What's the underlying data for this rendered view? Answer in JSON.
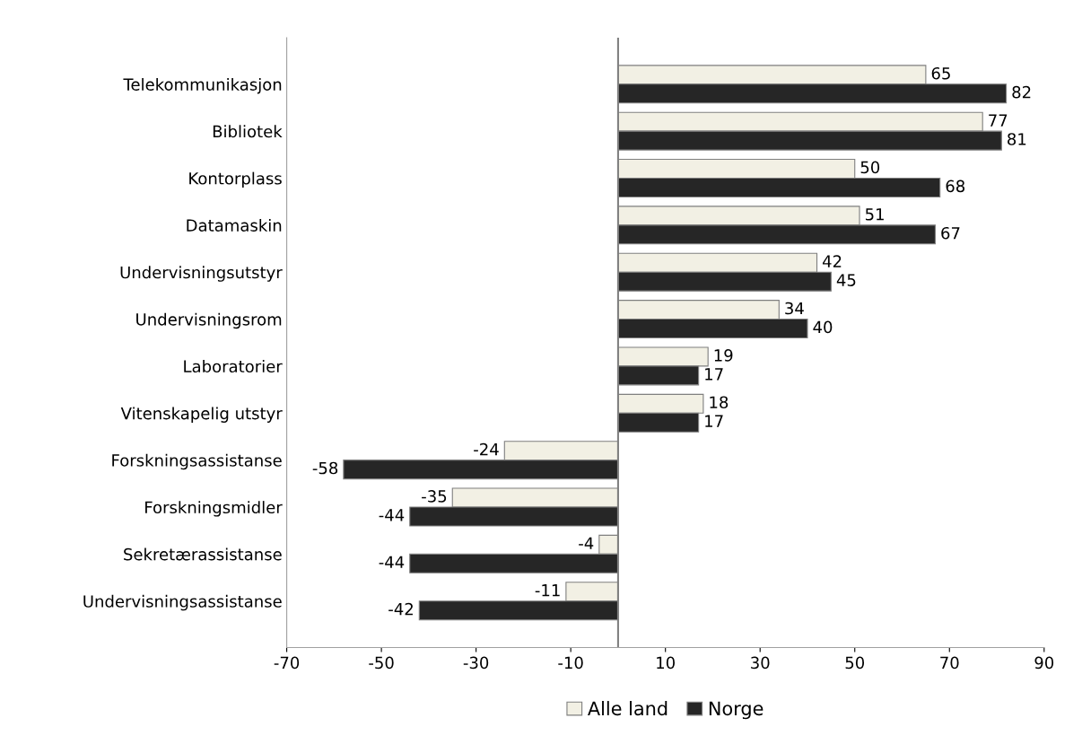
{
  "chart_data": {
    "type": "bar",
    "orientation": "horizontal",
    "categories": [
      "Telekommunikasjon",
      "Bibliotek",
      "Kontorplass",
      "Datamaskin",
      "Undervisningsutstyr",
      "Undervisningsrom",
      "Laboratorier",
      "Vitenskapelig utstyr",
      "Forskningsassistanse",
      "Forskningsmidler",
      "Sekretærassistanse",
      "Undervisningsassistanse"
    ],
    "series": [
      {
        "name": "Alle land",
        "color": "#f2f0e4",
        "values": [
          65,
          77,
          50,
          51,
          42,
          34,
          19,
          18,
          -24,
          -35,
          -4,
          -11
        ]
      },
      {
        "name": "Norge",
        "color": "#262626",
        "values": [
          82,
          81,
          68,
          67,
          45,
          40,
          17,
          17,
          -58,
          -44,
          -44,
          -42
        ]
      }
    ],
    "xlim": [
      -70,
      90
    ],
    "xticks": [
      -70,
      -50,
      -30,
      -10,
      10,
      30,
      50,
      70,
      90
    ],
    "ref_lines": [
      {
        "axis": "x",
        "value": 0,
        "color": "#808080"
      }
    ],
    "data_labels": true,
    "legend": "bottom",
    "grid": false
  }
}
